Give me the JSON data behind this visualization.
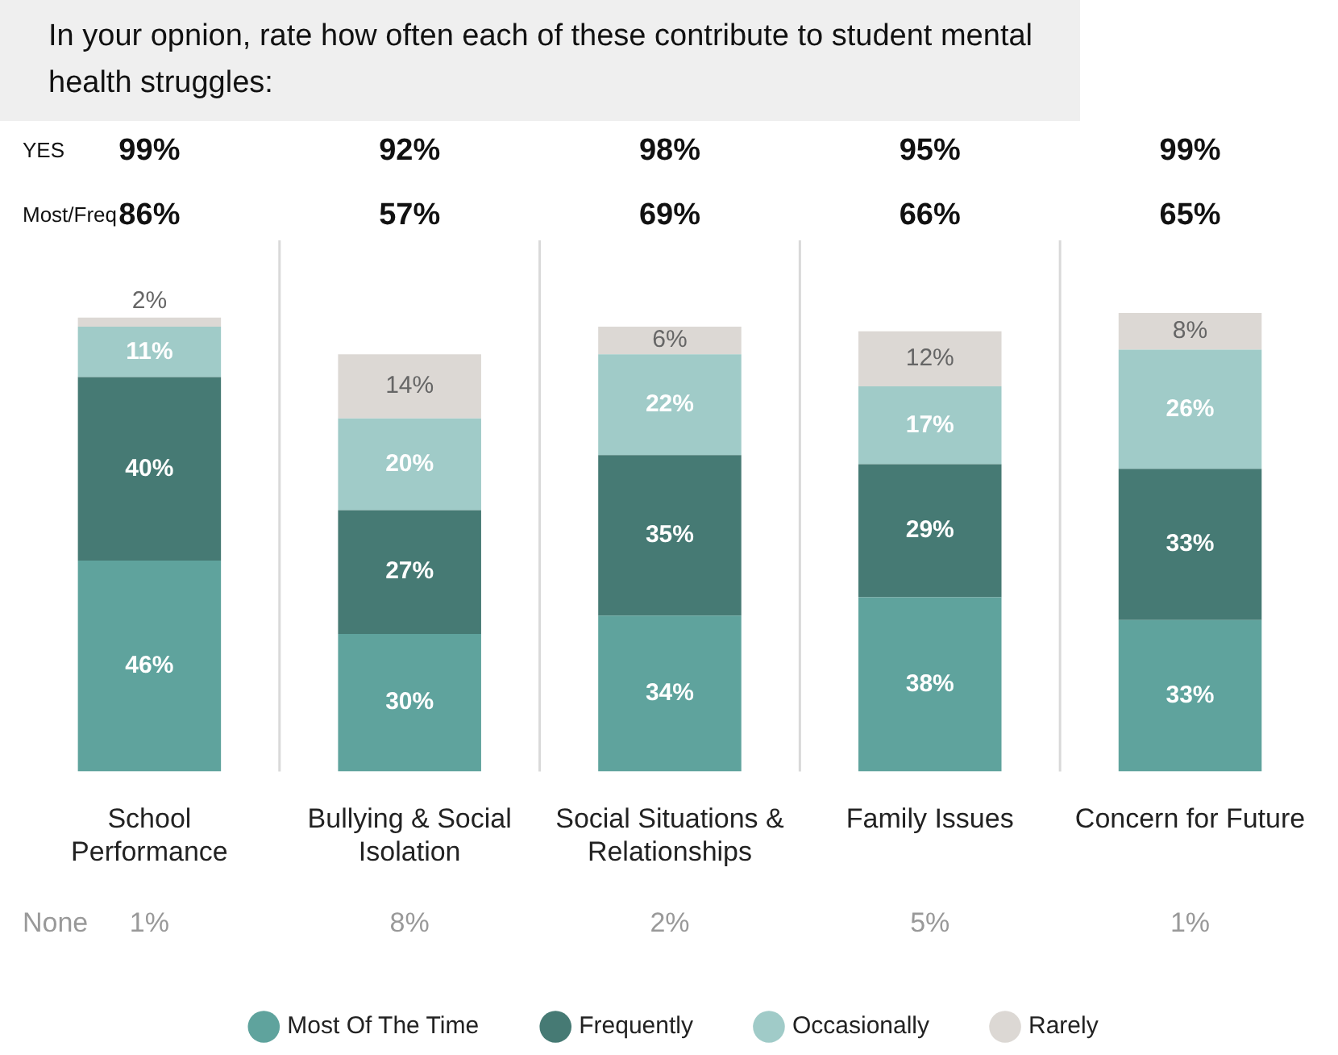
{
  "chart_data": {
    "type": "bar",
    "stacked": true,
    "title": "In your opnion, rate how often each of these contribute to student mental health struggles:",
    "categories": [
      "School Performance",
      "Bullying & Social Isolation",
      "Social Situations & Relationships",
      "Family Issues",
      "Concern for Future"
    ],
    "series": [
      {
        "name": "Most Of The Time",
        "color": "#5fa39d",
        "values": [
          46,
          30,
          34,
          38,
          33
        ],
        "value_labels": [
          "46%",
          "30%",
          "34%",
          "38%",
          "33%"
        ]
      },
      {
        "name": "Frequently",
        "color": "#467a74",
        "values": [
          40,
          27,
          35,
          29,
          33
        ],
        "value_labels": [
          "40%",
          "27%",
          "35%",
          "29%",
          "33%"
        ]
      },
      {
        "name": "Occasionally",
        "color": "#a0cbc8",
        "values": [
          11,
          20,
          22,
          17,
          26
        ],
        "value_labels": [
          "11%",
          "20%",
          "22%",
          "17%",
          "26%"
        ]
      },
      {
        "name": "Rarely",
        "color": "#dcd8d4",
        "values": [
          2,
          14,
          6,
          12,
          8
        ],
        "value_labels": [
          "2%",
          "14%",
          "6%",
          "12%",
          "8%"
        ]
      }
    ],
    "ylim": [
      0,
      100
    ],
    "tick_labels": "x",
    "grid": "x",
    "legend": "bottom",
    "annotations": [
      "YES",
      "99%",
      "92%",
      "98%",
      "95%",
      "99%",
      "Most/Freq",
      "86%",
      "57%",
      "69%",
      "66%",
      "65%",
      "None",
      "1%",
      "8%",
      "2%",
      "5%",
      "1%"
    ]
  }
}
